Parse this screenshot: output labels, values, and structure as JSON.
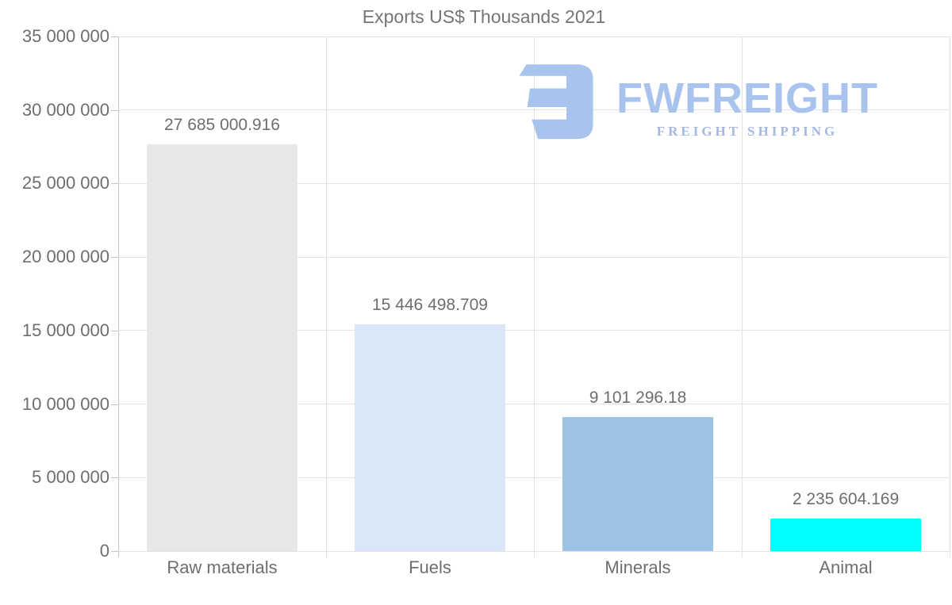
{
  "logo": {
    "brand": "FWFREIGHT",
    "subtitle": "FREIGHT SHIPPING",
    "brand_color": "#a8c4ee",
    "subtitle_color": "#a5b8e0",
    "icon_name": "fwfreight-monogram-icon"
  },
  "chart_data": {
    "type": "bar",
    "title": "Exports US$ Thousands 2021",
    "categories": [
      "Raw materials",
      "Fuels",
      "Minerals",
      "Animal"
    ],
    "values": [
      27685000.916,
      15446498.709,
      9101296.18,
      2235604.169
    ],
    "value_labels": [
      "27 685 000.916",
      "15 446 498.709",
      "9 101 296.18",
      "2 235 604.169"
    ],
    "bar_colors": [
      "#e7e7e7",
      "#d9e7f8",
      "#9cc3e6",
      "#00ffff"
    ],
    "xlabel": "",
    "ylabel": "",
    "ylim": [
      0,
      35000000
    ],
    "ytick_step": 5000000,
    "yticks": [
      {
        "value": 0,
        "label": "0"
      },
      {
        "value": 5000000,
        "label": "5 000 000"
      },
      {
        "value": 10000000,
        "label": "10 000 000"
      },
      {
        "value": 15000000,
        "label": "15 000 000"
      },
      {
        "value": 20000000,
        "label": "20 000 000"
      },
      {
        "value": 25000000,
        "label": "25 000 000"
      },
      {
        "value": 30000000,
        "label": "30 000 000"
      },
      {
        "value": 35000000,
        "label": "35 000 000"
      }
    ],
    "grid": "horizontal gridlines + vertical category boundaries",
    "legend_position": "none",
    "title_color": "#757575",
    "text_color": "#6e6e6e",
    "grid_color": "#e2e2e2",
    "axis_color": "#c4c4c4"
  }
}
